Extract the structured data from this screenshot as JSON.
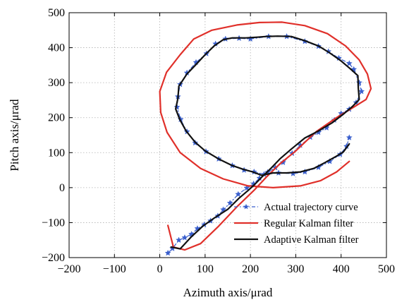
{
  "chart_data": {
    "type": "line",
    "xlabel": "Azimuth axis/μrad",
    "ylabel": "Pitch axis/μrad",
    "xlim": [
      -200,
      500
    ],
    "ylim": [
      -200,
      500
    ],
    "xticks": [
      -200,
      -100,
      0,
      100,
      200,
      300,
      400,
      500
    ],
    "yticks": [
      -200,
      -100,
      0,
      100,
      200,
      300,
      400,
      500
    ],
    "xtick_labels": [
      "−200",
      "−100",
      "0",
      "100",
      "200",
      "300",
      "400",
      "500"
    ],
    "ytick_labels": [
      "−200",
      "−100",
      "0",
      "100",
      "200",
      "300",
      "400",
      "500"
    ],
    "grid": true,
    "legend_position": "bottom-right",
    "series": [
      {
        "name": "Actual trajectory curve",
        "color": "#3a5fcd",
        "style": "dash-dot with star markers",
        "points": [
          [
            18,
            -187
          ],
          [
            28,
            -174
          ],
          [
            42,
            -150
          ],
          [
            55,
            -143
          ],
          [
            70,
            -133
          ],
          [
            83,
            -117
          ],
          [
            98,
            -106
          ],
          [
            112,
            -95
          ],
          [
            128,
            -81
          ],
          [
            140,
            -63
          ],
          [
            155,
            -44
          ],
          [
            173,
            -19
          ],
          [
            192,
            -1
          ],
          [
            207,
            11
          ],
          [
            220,
            27
          ],
          [
            238,
            44
          ],
          [
            255,
            57
          ],
          [
            272,
            72
          ],
          [
            292,
            98
          ],
          [
            310,
            121
          ],
          [
            332,
            144
          ],
          [
            350,
            158
          ],
          [
            368,
            171
          ],
          [
            385,
            193
          ],
          [
            400,
            212
          ],
          [
            418,
            224
          ],
          [
            433,
            243
          ],
          [
            445,
            275
          ],
          [
            440,
            300
          ],
          [
            428,
            338
          ],
          [
            418,
            355
          ],
          [
            395,
            370
          ],
          [
            372,
            389
          ],
          [
            350,
            404
          ],
          [
            320,
            418
          ],
          [
            280,
            432
          ],
          [
            240,
            432
          ],
          [
            200,
            425
          ],
          [
            175,
            427
          ],
          [
            145,
            425
          ],
          [
            123,
            411
          ],
          [
            103,
            383
          ],
          [
            80,
            358
          ],
          [
            60,
            328
          ],
          [
            45,
            295
          ],
          [
            40,
            260
          ],
          [
            38,
            230
          ],
          [
            46,
            195
          ],
          [
            60,
            160
          ],
          [
            78,
            128
          ],
          [
            102,
            103
          ],
          [
            130,
            82
          ],
          [
            160,
            63
          ],
          [
            186,
            50
          ],
          [
            208,
            45
          ],
          [
            230,
            38
          ],
          [
            262,
            42
          ],
          [
            294,
            40
          ],
          [
            320,
            45
          ],
          [
            350,
            58
          ],
          [
            375,
            75
          ],
          [
            398,
            95
          ],
          [
            412,
            118
          ],
          [
            418,
            143
          ]
        ]
      },
      {
        "name": "Regular Kalman filter",
        "color": "#e0302a",
        "style": "solid",
        "points": [
          [
            18,
            -108
          ],
          [
            30,
            -170
          ],
          [
            55,
            -178
          ],
          [
            90,
            -160
          ],
          [
            130,
            -110
          ],
          [
            170,
            -55
          ],
          [
            210,
            -5
          ],
          [
            235,
            30
          ],
          [
            265,
            68
          ],
          [
            300,
            105
          ],
          [
            345,
            160
          ],
          [
            390,
            200
          ],
          [
            430,
            232
          ],
          [
            455,
            252
          ],
          [
            466,
            283
          ],
          [
            458,
            325
          ],
          [
            440,
            365
          ],
          [
            410,
            405
          ],
          [
            370,
            440
          ],
          [
            320,
            463
          ],
          [
            270,
            473
          ],
          [
            220,
            472
          ],
          [
            170,
            465
          ],
          [
            115,
            450
          ],
          [
            75,
            425
          ],
          [
            45,
            380
          ],
          [
            15,
            330
          ],
          [
            0,
            275
          ],
          [
            2,
            215
          ],
          [
            16,
            158
          ],
          [
            45,
            100
          ],
          [
            90,
            55
          ],
          [
            140,
            25
          ],
          [
            195,
            5
          ],
          [
            250,
            0
          ],
          [
            310,
            5
          ],
          [
            355,
            20
          ],
          [
            390,
            45
          ],
          [
            418,
            75
          ]
        ]
      },
      {
        "name": "Adaptive Kalman filter",
        "color": "#111111",
        "style": "solid",
        "points": [
          [
            25,
            -170
          ],
          [
            45,
            -175
          ],
          [
            70,
            -140
          ],
          [
            95,
            -110
          ],
          [
            120,
            -87
          ],
          [
            150,
            -62
          ],
          [
            175,
            -30
          ],
          [
            195,
            -8
          ],
          [
            210,
            10
          ],
          [
            225,
            30
          ],
          [
            245,
            55
          ],
          [
            265,
            82
          ],
          [
            290,
            110
          ],
          [
            320,
            142
          ],
          [
            350,
            162
          ],
          [
            380,
            185
          ],
          [
            405,
            210
          ],
          [
            425,
            232
          ],
          [
            440,
            252
          ],
          [
            438,
            285
          ],
          [
            437,
            320
          ],
          [
            420,
            340
          ],
          [
            400,
            362
          ],
          [
            375,
            385
          ],
          [
            350,
            405
          ],
          [
            320,
            420
          ],
          [
            290,
            432
          ],
          [
            260,
            433
          ],
          [
            235,
            432
          ],
          [
            215,
            430
          ],
          [
            190,
            428
          ],
          [
            160,
            428
          ],
          [
            140,
            423
          ],
          [
            120,
            405
          ],
          [
            100,
            380
          ],
          [
            80,
            352
          ],
          [
            60,
            325
          ],
          [
            42,
            290
          ],
          [
            40,
            255
          ],
          [
            35,
            225
          ],
          [
            44,
            195
          ],
          [
            58,
            162
          ],
          [
            78,
            130
          ],
          [
            100,
            105
          ],
          [
            130,
            82
          ],
          [
            160,
            63
          ],
          [
            185,
            52
          ],
          [
            205,
            45
          ],
          [
            225,
            35
          ],
          [
            250,
            42
          ],
          [
            280,
            42
          ],
          [
            310,
            45
          ],
          [
            340,
            55
          ],
          [
            365,
            72
          ],
          [
            390,
            90
          ],
          [
            405,
            102
          ],
          [
            418,
            125
          ]
        ]
      }
    ]
  }
}
